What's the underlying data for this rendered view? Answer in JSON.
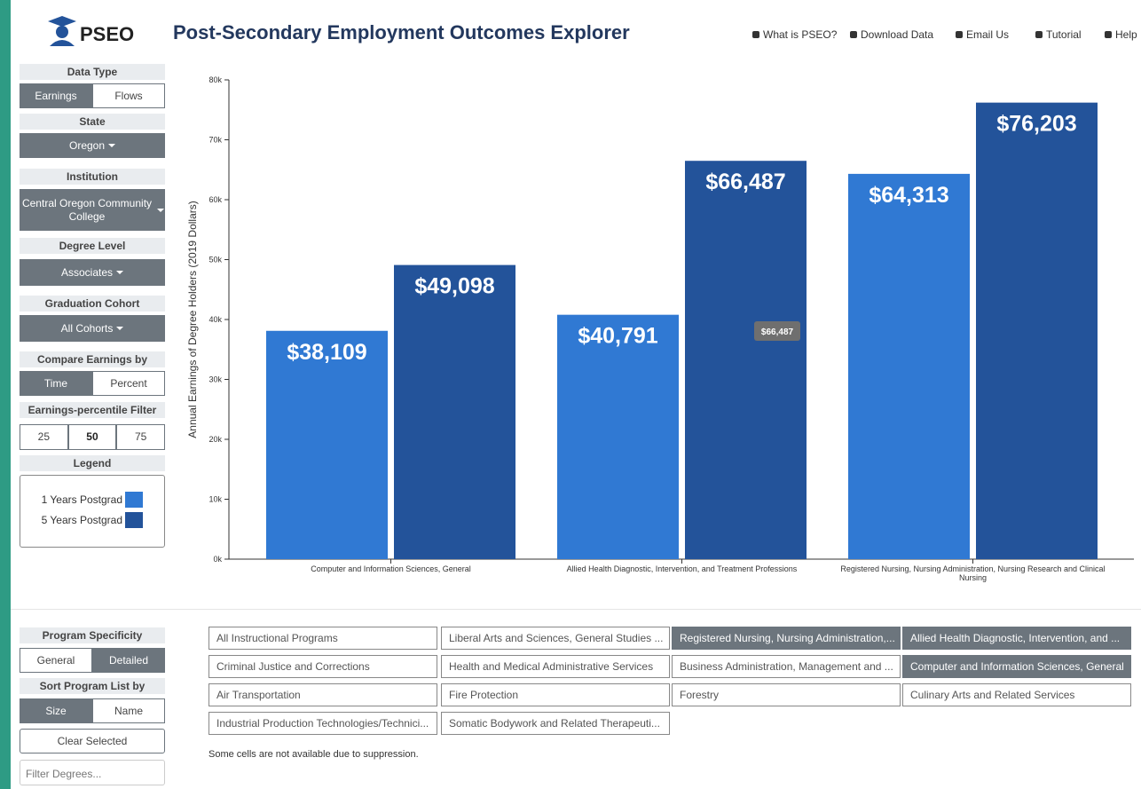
{
  "header": {
    "logo": "PSEO",
    "title": "Post-Secondary Employment Outcomes Explorer",
    "nav": [
      "What is PSEO?",
      "Download Data",
      "Email Us",
      "Tutorial",
      "Help"
    ]
  },
  "sidebar": {
    "data_type": {
      "label": "Data Type",
      "options": [
        "Earnings",
        "Flows"
      ],
      "active": 0
    },
    "state": {
      "label": "State",
      "value": "Oregon"
    },
    "institution": {
      "label": "Institution",
      "value": "Central Oregon Community College"
    },
    "degree_level": {
      "label": "Degree Level",
      "value": "Associates"
    },
    "cohort": {
      "label": "Graduation Cohort",
      "value": "All Cohorts"
    },
    "compare": {
      "label": "Compare Earnings by",
      "options": [
        "Time",
        "Percent"
      ],
      "active": 0
    },
    "percentile": {
      "label": "Earnings-percentile Filter",
      "options": [
        "25",
        "50",
        "75"
      ],
      "active": 1
    },
    "legend": {
      "label": "Legend"
    },
    "specificity": {
      "label": "Program Specificity",
      "options": [
        "General",
        "Detailed"
      ],
      "active": 1
    },
    "sort": {
      "label": "Sort Program List by",
      "options": [
        "Size",
        "Name"
      ],
      "active": 0
    },
    "clear": "Clear Selected",
    "filter_placeholder": "Filter Degrees..."
  },
  "chart_data": {
    "type": "bar",
    "y_label": "Annual Earnings of Degree Holders (2019 Dollars)",
    "categories": [
      "Computer and Information Sciences, General",
      "Allied Health Diagnostic, Intervention, and Treatment Professions",
      "Registered Nursing, Nursing Administration, Nursing Research and Clinical Nursing"
    ],
    "series": [
      {
        "name": "1 Years Postgrad",
        "color": "#3079d3",
        "values": [
          38109,
          40791,
          64313
        ],
        "value_labels": [
          "$38,109",
          "$40,791",
          "$64,313"
        ]
      },
      {
        "name": "5 Years Postgrad",
        "color": "#23539a",
        "values": [
          49098,
          66487,
          76203
        ],
        "value_labels": [
          "$49,098",
          "$66,487",
          "$76,203"
        ]
      }
    ],
    "ylim": [
      0,
      80000
    ],
    "yticks": [
      {
        "value": 0,
        "label": "0k"
      },
      {
        "value": 10000,
        "label": "10k"
      },
      {
        "value": 20000,
        "label": "20k"
      },
      {
        "value": 30000,
        "label": "30k"
      },
      {
        "value": 40000,
        "label": "40k"
      },
      {
        "value": 50000,
        "label": "50k"
      },
      {
        "value": 60000,
        "label": "60k"
      },
      {
        "value": 70000,
        "label": "70k"
      },
      {
        "value": 80000,
        "label": "80k"
      }
    ],
    "tooltip": {
      "series": 1,
      "index": 1
    }
  },
  "programs": {
    "items": [
      {
        "label": "All Instructional Programs",
        "selected": false
      },
      {
        "label": "Liberal Arts and Sciences, General Studies ...",
        "selected": false
      },
      {
        "label": "Registered Nursing, Nursing Administration,...",
        "selected": true
      },
      {
        "label": "Allied Health Diagnostic, Intervention, and ...",
        "selected": true
      },
      {
        "label": "Criminal Justice and Corrections",
        "selected": false
      },
      {
        "label": "Health and Medical Administrative Services",
        "selected": false
      },
      {
        "label": "Business Administration, Management and ...",
        "selected": false
      },
      {
        "label": "Computer and Information Sciences, General",
        "selected": true
      },
      {
        "label": "Air Transportation",
        "selected": false
      },
      {
        "label": "Fire Protection",
        "selected": false
      },
      {
        "label": "Forestry",
        "selected": false
      },
      {
        "label": "Culinary Arts and Related Services",
        "selected": false
      },
      {
        "label": "Industrial Production Technologies/Technici...",
        "selected": false
      },
      {
        "label": "Somatic Bodywork and Related Therapeuti...",
        "selected": false
      }
    ],
    "note": "Some cells are not available due to suppression."
  }
}
